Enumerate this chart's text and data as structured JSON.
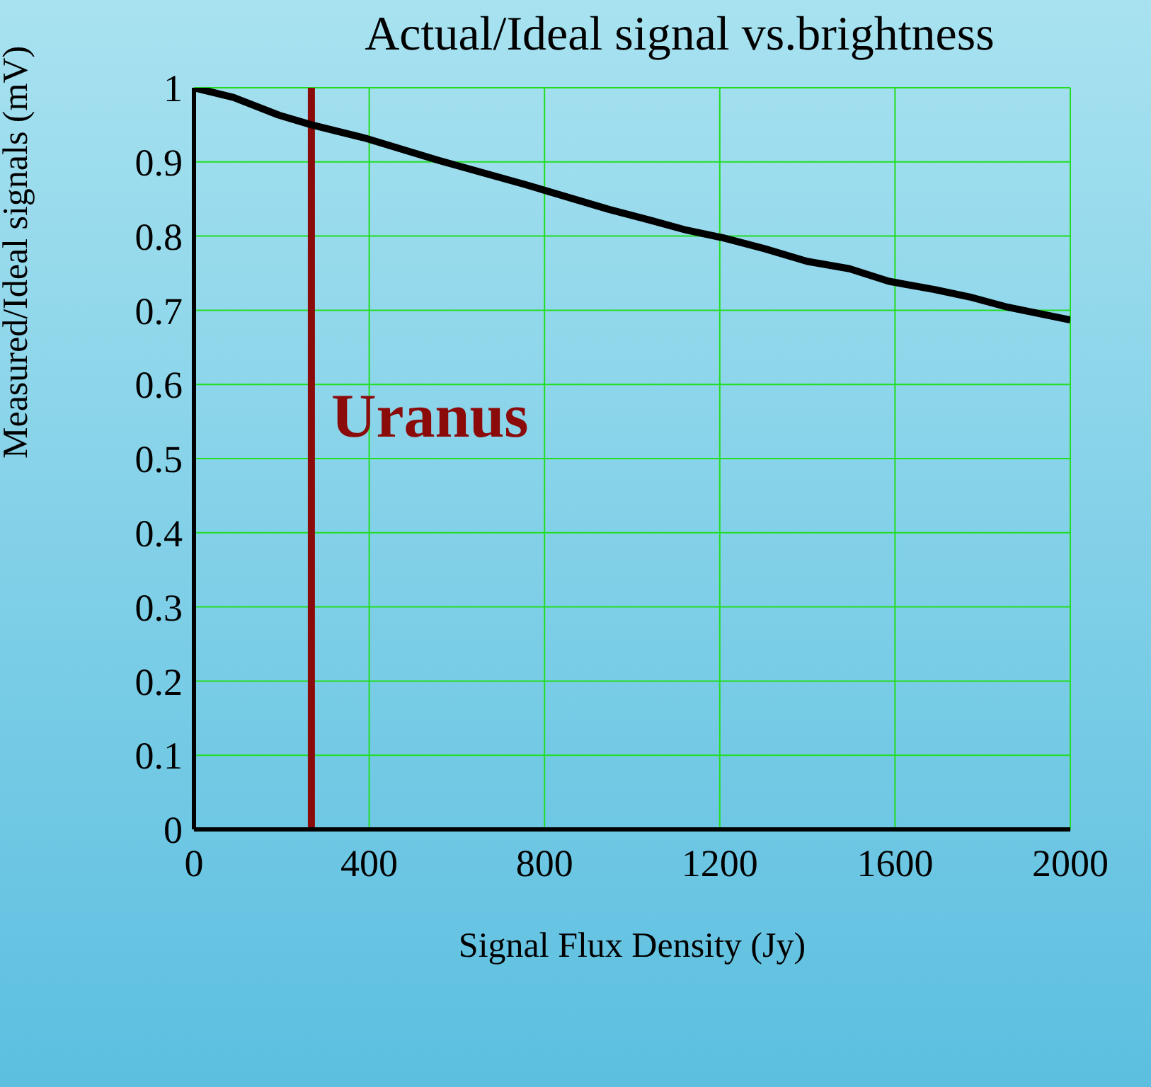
{
  "chart_data": {
    "type": "line",
    "title": "Actual/Ideal signal vs.brightness",
    "xlabel": "Signal Flux Density  (Jy)",
    "ylabel": "Measured/Ideal signals (mV)",
    "x": [
      0,
      90,
      194,
      268,
      391,
      559,
      753,
      947,
      1044,
      1124,
      1205,
      1302,
      1399,
      1496,
      1586,
      1690,
      1770,
      1858,
      2000
    ],
    "series": [
      {
        "color": "#000000",
        "values": [
          1,
          0.987,
          0.963,
          0.95,
          0.932,
          0.902,
          0.87,
          0.836,
          0.821,
          0.808,
          0.798,
          0.783,
          0.766,
          0.756,
          0.739,
          0.728,
          0.718,
          0.704,
          0.687
        ]
      }
    ],
    "xlim": [
      0,
      2000
    ],
    "xticks": [
      0,
      400,
      800,
      1200,
      1600,
      2000
    ],
    "ylim": [
      0,
      1
    ],
    "yticks": [
      0,
      0.1,
      0.2,
      0.3,
      0.4,
      0.5,
      0.6,
      0.7,
      0.8,
      0.9,
      1
    ],
    "grid": true,
    "ref_lines": [
      {
        "axis": "x",
        "value": 268,
        "label": "Uranus",
        "color": "#8b0a0a"
      }
    ]
  }
}
